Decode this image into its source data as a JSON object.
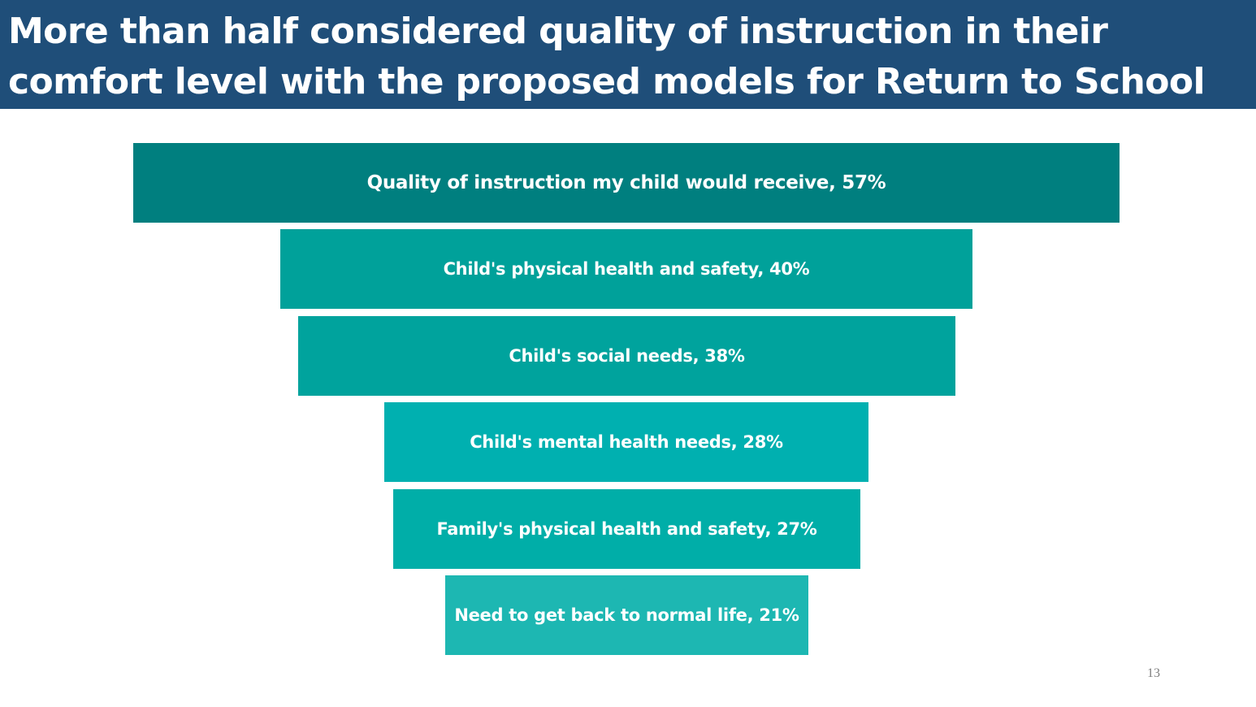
{
  "slide": {
    "title": "More than half considered quality of instruction in their comfort level with the proposed models for Return to School",
    "page_number": "13"
  },
  "colors": {
    "header_bg": "#1f4e79",
    "title_text": "#ffffff",
    "bar_text": "#ffffff",
    "bars": [
      "#007f7f",
      "#00a19a",
      "#00a39d",
      "#00b0b0",
      "#00aea8",
      "#1db7b2"
    ]
  },
  "chart_data": {
    "type": "funnel",
    "unit": "%",
    "max_value": 57,
    "categories": [
      "Quality of instruction my child would receive",
      "Child's physical health and safety",
      "Child's social needs",
      "Child's mental health needs",
      "Family's physical health and safety",
      "Need to get back to normal life"
    ],
    "values": [
      57,
      40,
      38,
      28,
      27,
      21
    ],
    "data_labels": [
      "Quality of instruction my child would receive, 57%",
      "Child's physical health and safety, 40%",
      "Child's social needs, 38%",
      "Child's mental health needs, 28%",
      "Family's physical health and safety, 27%",
      "Need to get back to normal life, 21%"
    ]
  }
}
